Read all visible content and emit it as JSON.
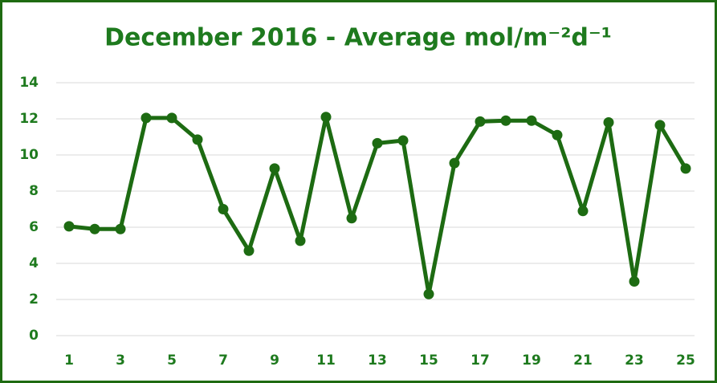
{
  "chart_data": {
    "type": "line",
    "title": "December 2016 - Average mol/m⁻²d⁻¹",
    "x": [
      1,
      2,
      3,
      4,
      5,
      6,
      7,
      8,
      9,
      10,
      11,
      12,
      13,
      14,
      15,
      16,
      17,
      18,
      19,
      20,
      21,
      22,
      23,
      24,
      25
    ],
    "series": [
      {
        "name": "Average",
        "color": "#1d6b12",
        "values": [
          6.05,
          5.9,
          5.9,
          12.05,
          12.05,
          10.85,
          7.0,
          4.7,
          9.25,
          5.25,
          12.1,
          6.5,
          10.65,
          10.8,
          2.3,
          9.55,
          11.85,
          11.9,
          11.9,
          11.1,
          6.9,
          11.8,
          3.0,
          11.65,
          9.25
        ]
      }
    ],
    "xlim": [
      0.5,
      25.5
    ],
    "xticks": [
      1,
      3,
      5,
      7,
      9,
      11,
      13,
      15,
      17,
      19,
      21,
      23,
      25
    ],
    "ylim": [
      0,
      14
    ],
    "yticks": [
      0,
      2,
      4,
      6,
      8,
      10,
      12,
      14
    ],
    "grid": true
  }
}
